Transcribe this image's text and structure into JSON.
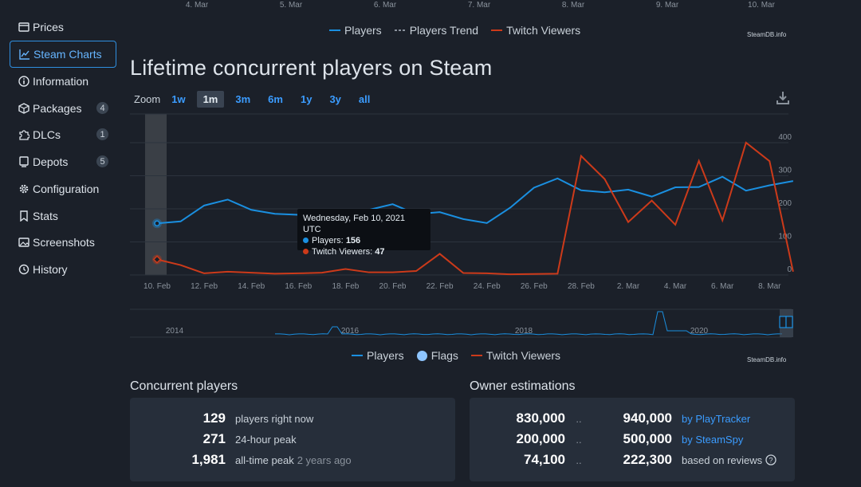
{
  "sidebar": {
    "items": [
      {
        "label": "Prices",
        "icon": "price-tag-icon"
      },
      {
        "label": "Steam Charts",
        "icon": "line-chart-icon",
        "active": true
      },
      {
        "label": "Information",
        "icon": "info-icon"
      },
      {
        "label": "Packages",
        "icon": "package-icon",
        "badge": "4"
      },
      {
        "label": "DLCs",
        "icon": "puzzle-icon",
        "badge": "1"
      },
      {
        "label": "Depots",
        "icon": "server-icon",
        "badge": "5"
      },
      {
        "label": "Configuration",
        "icon": "gear-icon"
      },
      {
        "label": "Stats",
        "icon": "bookmark-icon"
      },
      {
        "label": "Screenshots",
        "icon": "image-icon"
      },
      {
        "label": "History",
        "icon": "history-icon"
      }
    ]
  },
  "top_chart": {
    "axis_dates": [
      "4. Mar",
      "5. Mar",
      "6. Mar",
      "7. Mar",
      "8. Mar",
      "9. Mar",
      "10. Mar"
    ],
    "legend": [
      "Players",
      "Players Trend",
      "Twitch Viewers"
    ],
    "credit": "SteamDB.info"
  },
  "title": "Lifetime concurrent players on Steam",
  "zoom": {
    "label": "Zoom",
    "buttons": [
      "1w",
      "1m",
      "3m",
      "6m",
      "1y",
      "3y",
      "all"
    ],
    "selected": "1m"
  },
  "tooltip": {
    "date": "Wednesday, Feb 10, 2021 UTC",
    "players_label": "Players:",
    "players_value": "156",
    "twitch_label": "Twitch Viewers:",
    "twitch_value": "47"
  },
  "chart_data": {
    "type": "line",
    "x": [
      "10. Feb",
      "11. Feb",
      "12. Feb",
      "13. Feb",
      "14. Feb",
      "15. Feb",
      "16. Feb",
      "17. Feb",
      "18. Feb",
      "19. Feb",
      "20. Feb",
      "21. Feb",
      "22. Feb",
      "23. Feb",
      "24. Feb",
      "25. Feb",
      "26. Feb",
      "27. Feb",
      "28. Feb",
      "1. Mar",
      "2. Mar",
      "3. Mar",
      "4. Mar",
      "5. Mar",
      "6. Mar",
      "7. Mar",
      "8. Mar",
      "9. Mar"
    ],
    "x_tick_labels": [
      "10. Feb",
      "12. Feb",
      "14. Feb",
      "16. Feb",
      "18. Feb",
      "20. Feb",
      "22. Feb",
      "24. Feb",
      "26. Feb",
      "28. Feb",
      "2. Mar",
      "4. Mar",
      "6. Mar",
      "8. Mar"
    ],
    "y_ticks": [
      0,
      100,
      200,
      300,
      400
    ],
    "ylim": [
      0,
      400
    ],
    "series": [
      {
        "name": "Players",
        "color": "#1a8fe0",
        "values": [
          156,
          162,
          210,
          228,
          197,
          185,
          182,
          189,
          174,
          197,
          214,
          184,
          190,
          169,
          157,
          204,
          264,
          292,
          256,
          250,
          258,
          237,
          265,
          266,
          297,
          255,
          271,
          284
        ]
      },
      {
        "name": "Twitch Viewers",
        "color": "#cc3a1a",
        "values": [
          47,
          30,
          5,
          10,
          7,
          4,
          5,
          7,
          18,
          8,
          8,
          12,
          64,
          6,
          5,
          2,
          3,
          4,
          360,
          290,
          160,
          225,
          152,
          345,
          165,
          400,
          344,
          10
        ]
      }
    ]
  },
  "navigator": {
    "years": [
      "2014",
      "2016",
      "2018",
      "2020"
    ],
    "legend": [
      "Players",
      "Flags",
      "Twitch Viewers"
    ],
    "credit": "SteamDB.info"
  },
  "concurrent": {
    "title": "Concurrent players",
    "rows": [
      {
        "value": "129",
        "label": "players right now",
        "extra": ""
      },
      {
        "value": "271",
        "label": "24-hour peak",
        "extra": ""
      },
      {
        "value": "1,981",
        "label": "all-time peak",
        "extra": "2 years ago"
      }
    ]
  },
  "owners": {
    "title": "Owner estimations",
    "rows": [
      {
        "low": "830,000",
        "sep": "..",
        "high": "940,000",
        "source": "by PlayTracker",
        "link": true
      },
      {
        "low": "200,000",
        "sep": "..",
        "high": "500,000",
        "source": "by SteamSpy",
        "link": true
      },
      {
        "low": "74,100",
        "sep": "..",
        "high": "222,300",
        "source": "based on reviews",
        "link": false
      }
    ]
  }
}
